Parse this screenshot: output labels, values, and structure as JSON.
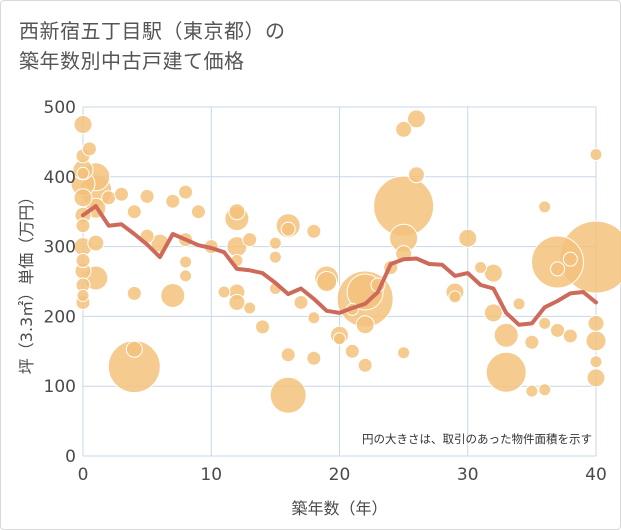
{
  "title": {
    "line1": "西新宿五丁目駅（東京都）の",
    "line2": "築年数別中古戸建て価格"
  },
  "colors": {
    "bubble_fill": "#f3c27c",
    "bubble_stroke": "#ffffff",
    "line": "#cd6a5a",
    "grid": "#c9d7e6",
    "plot_bg": "#ffffff"
  },
  "chart_data": {
    "type": "scatter",
    "xlabel": "築年数（年）",
    "ylabel": "坪（3.3㎡）単価（万円）",
    "xlim": [
      0,
      40
    ],
    "ylim": [
      0,
      500
    ],
    "xticks": [
      0,
      10,
      20,
      30,
      40
    ],
    "yticks": [
      0,
      100,
      200,
      300,
      400,
      500
    ],
    "grid": true,
    "note": "円の大きさは、取引のあった物件面積を示す",
    "bubbles": [
      {
        "x": 0,
        "y": 475,
        "size": 9
      },
      {
        "x": 0,
        "y": 430,
        "size": 7
      },
      {
        "x": 0,
        "y": 410,
        "size": 10
      },
      {
        "x": 0,
        "y": 390,
        "size": 12
      },
      {
        "x": 0,
        "y": 370,
        "size": 9
      },
      {
        "x": 0,
        "y": 345,
        "size": 8
      },
      {
        "x": 0,
        "y": 330,
        "size": 7
      },
      {
        "x": 0,
        "y": 300,
        "size": 9
      },
      {
        "x": 0,
        "y": 280,
        "size": 7
      },
      {
        "x": 0,
        "y": 265,
        "size": 8
      },
      {
        "x": 0,
        "y": 245,
        "size": 7
      },
      {
        "x": 0,
        "y": 230,
        "size": 6
      },
      {
        "x": 0,
        "y": 220,
        "size": 7
      },
      {
        "x": 0,
        "y": 405,
        "size": 6
      },
      {
        "x": 1,
        "y": 400,
        "size": 14
      },
      {
        "x": 1,
        "y": 380,
        "size": 16
      },
      {
        "x": 1,
        "y": 355,
        "size": 10
      },
      {
        "x": 1,
        "y": 305,
        "size": 8
      },
      {
        "x": 1,
        "y": 255,
        "size": 12
      },
      {
        "x": 0.5,
        "y": 440,
        "size": 7
      },
      {
        "x": 2,
        "y": 370,
        "size": 7
      },
      {
        "x": 3,
        "y": 375,
        "size": 7
      },
      {
        "x": 4,
        "y": 350,
        "size": 7
      },
      {
        "x": 4,
        "y": 233,
        "size": 7
      },
      {
        "x": 4,
        "y": 128,
        "size": 26
      },
      {
        "x": 4,
        "y": 153,
        "size": 8
      },
      {
        "x": 5,
        "y": 372,
        "size": 7
      },
      {
        "x": 5,
        "y": 315,
        "size": 7
      },
      {
        "x": 6,
        "y": 305,
        "size": 9
      },
      {
        "x": 7,
        "y": 365,
        "size": 7
      },
      {
        "x": 7,
        "y": 230,
        "size": 12
      },
      {
        "x": 8,
        "y": 378,
        "size": 7
      },
      {
        "x": 8,
        "y": 310,
        "size": 7
      },
      {
        "x": 8,
        "y": 278,
        "size": 6
      },
      {
        "x": 8,
        "y": 258,
        "size": 6
      },
      {
        "x": 9,
        "y": 350,
        "size": 7
      },
      {
        "x": 10,
        "y": 300,
        "size": 7
      },
      {
        "x": 11,
        "y": 235,
        "size": 6
      },
      {
        "x": 12,
        "y": 340,
        "size": 12
      },
      {
        "x": 12,
        "y": 350,
        "size": 8
      },
      {
        "x": 12,
        "y": 300,
        "size": 10
      },
      {
        "x": 12,
        "y": 280,
        "size": 6
      },
      {
        "x": 12,
        "y": 235,
        "size": 8
      },
      {
        "x": 12,
        "y": 220,
        "size": 8
      },
      {
        "x": 13,
        "y": 310,
        "size": 7
      },
      {
        "x": 13,
        "y": 212,
        "size": 6
      },
      {
        "x": 14,
        "y": 185,
        "size": 7
      },
      {
        "x": 15,
        "y": 305,
        "size": 6
      },
      {
        "x": 15,
        "y": 285,
        "size": 6
      },
      {
        "x": 15,
        "y": 240,
        "size": 6
      },
      {
        "x": 16,
        "y": 330,
        "size": 12
      },
      {
        "x": 16,
        "y": 325,
        "size": 7
      },
      {
        "x": 16,
        "y": 145,
        "size": 7
      },
      {
        "x": 16,
        "y": 87,
        "size": 18
      },
      {
        "x": 17,
        "y": 220,
        "size": 7
      },
      {
        "x": 18,
        "y": 322,
        "size": 7
      },
      {
        "x": 18,
        "y": 198,
        "size": 6
      },
      {
        "x": 18,
        "y": 140,
        "size": 7
      },
      {
        "x": 19,
        "y": 255,
        "size": 12
      },
      {
        "x": 19,
        "y": 250,
        "size": 10
      },
      {
        "x": 20,
        "y": 173,
        "size": 9
      },
      {
        "x": 20,
        "y": 168,
        "size": 6
      },
      {
        "x": 21,
        "y": 150,
        "size": 7
      },
      {
        "x": 21,
        "y": 210,
        "size": 6
      },
      {
        "x": 22,
        "y": 235,
        "size": 18
      },
      {
        "x": 22,
        "y": 225,
        "size": 28
      },
      {
        "x": 22,
        "y": 188,
        "size": 9
      },
      {
        "x": 22,
        "y": 130,
        "size": 7
      },
      {
        "x": 23,
        "y": 245,
        "size": 7
      },
      {
        "x": 24,
        "y": 270,
        "size": 7
      },
      {
        "x": 25,
        "y": 358,
        "size": 30
      },
      {
        "x": 25,
        "y": 312,
        "size": 14
      },
      {
        "x": 25,
        "y": 290,
        "size": 8
      },
      {
        "x": 25,
        "y": 468,
        "size": 8
      },
      {
        "x": 25,
        "y": 148,
        "size": 6
      },
      {
        "x": 26,
        "y": 483,
        "size": 9
      },
      {
        "x": 26,
        "y": 403,
        "size": 8
      },
      {
        "x": 29,
        "y": 235,
        "size": 9
      },
      {
        "x": 29,
        "y": 228,
        "size": 6
      },
      {
        "x": 30,
        "y": 312,
        "size": 9
      },
      {
        "x": 31,
        "y": 270,
        "size": 6
      },
      {
        "x": 32,
        "y": 262,
        "size": 9
      },
      {
        "x": 32,
        "y": 205,
        "size": 9
      },
      {
        "x": 33,
        "y": 173,
        "size": 12
      },
      {
        "x": 33,
        "y": 120,
        "size": 20
      },
      {
        "x": 34,
        "y": 218,
        "size": 6
      },
      {
        "x": 35,
        "y": 163,
        "size": 7
      },
      {
        "x": 35,
        "y": 93,
        "size": 6
      },
      {
        "x": 36,
        "y": 95,
        "size": 6
      },
      {
        "x": 36,
        "y": 357,
        "size": 6
      },
      {
        "x": 36,
        "y": 190,
        "size": 6
      },
      {
        "x": 37,
        "y": 278,
        "size": 26
      },
      {
        "x": 37,
        "y": 268,
        "size": 7
      },
      {
        "x": 37,
        "y": 180,
        "size": 7
      },
      {
        "x": 38,
        "y": 282,
        "size": 7
      },
      {
        "x": 38,
        "y": 172,
        "size": 7
      },
      {
        "x": 40,
        "y": 285,
        "size": 36
      },
      {
        "x": 40,
        "y": 432,
        "size": 6
      },
      {
        "x": 40,
        "y": 190,
        "size": 8
      },
      {
        "x": 40,
        "y": 165,
        "size": 10
      },
      {
        "x": 40,
        "y": 135,
        "size": 6
      },
      {
        "x": 40,
        "y": 112,
        "size": 9
      }
    ],
    "series": [
      {
        "x": [
          0,
          1,
          2,
          3,
          4,
          5,
          6,
          7,
          8,
          9,
          10,
          11,
          12,
          13,
          14,
          15,
          16,
          17,
          18,
          19,
          20,
          21,
          22,
          23,
          24,
          25,
          26,
          27,
          28,
          29,
          30,
          31,
          32,
          33,
          34,
          35,
          36,
          37,
          38,
          39,
          40
        ],
        "values": [
          345,
          358,
          330,
          332,
          318,
          303,
          285,
          318,
          310,
          302,
          298,
          292,
          268,
          266,
          262,
          248,
          232,
          240,
          225,
          208,
          205,
          212,
          218,
          235,
          275,
          282,
          283,
          275,
          274,
          258,
          262,
          245,
          240,
          205,
          188,
          190,
          213,
          222,
          233,
          235,
          220
        ]
      }
    ]
  }
}
